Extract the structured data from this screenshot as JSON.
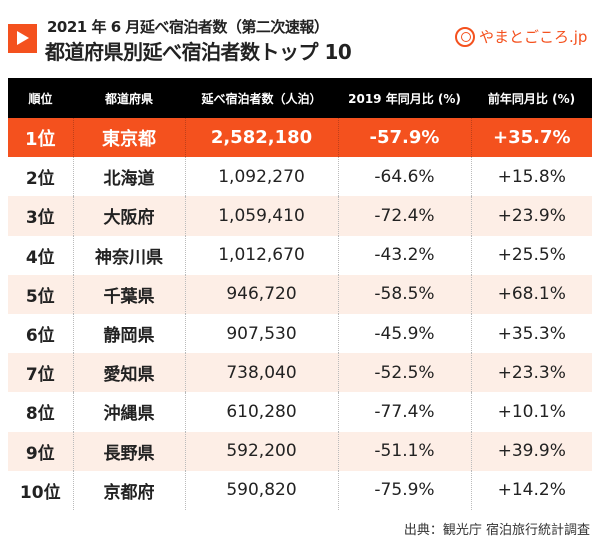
{
  "header": {
    "title_line1": "2021 年 6 月延べ宿泊者数（第二次速報）",
    "title_line2": "都道府県別延べ宿泊者数トップ 10",
    "brand": "やまとごころ.jp"
  },
  "table": {
    "columns": [
      "順位",
      "都道府県",
      "延べ宿泊者数（人泊）",
      "2019 年同月比 (%)",
      "前年同月比 (%)"
    ],
    "rows": [
      [
        "1位",
        "東京都",
        "2,582,180",
        "-57.9%",
        "+35.7%"
      ],
      [
        "2位",
        "北海道",
        "1,092,270",
        "-64.6%",
        "+15.8%"
      ],
      [
        "3位",
        "大阪府",
        "1,059,410",
        "-72.4%",
        "+23.9%"
      ],
      [
        "4位",
        "神奈川県",
        "1,012,670",
        "-43.2%",
        "+25.5%"
      ],
      [
        "5位",
        "千葉県",
        "946,720",
        "-58.5%",
        "+68.1%"
      ],
      [
        "6位",
        "静岡県",
        "907,530",
        "-45.9%",
        "+35.3%"
      ],
      [
        "7位",
        "愛知県",
        "738,040",
        "-52.5%",
        "+23.3%"
      ],
      [
        "8位",
        "沖縄県",
        "610,280",
        "-77.4%",
        "+10.1%"
      ],
      [
        "9位",
        "長野県",
        "592,200",
        "-51.1%",
        "+39.9%"
      ],
      [
        "10位",
        "京都府",
        "590,820",
        "-75.9%",
        "+14.2%"
      ]
    ]
  },
  "source": "出典：観光庁 宿泊旅行統計調査",
  "colors": {
    "accent": "#f4511e",
    "stripe": "#fdeee6"
  }
}
